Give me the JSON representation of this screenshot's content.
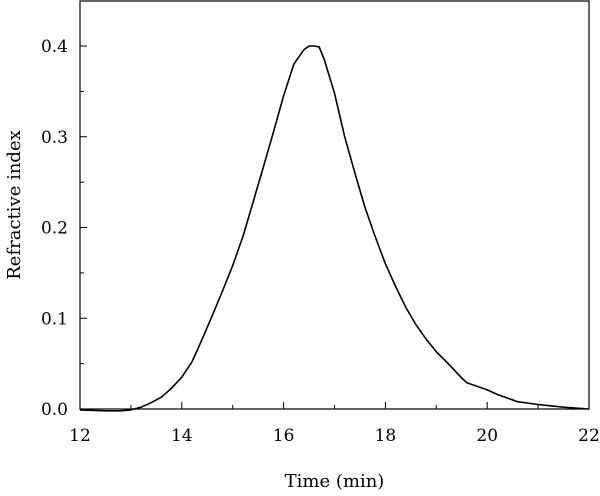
{
  "chart_data": {
    "type": "line",
    "title": "",
    "xlabel": "Time (min)",
    "ylabel": "Refractive index",
    "xlim": [
      12,
      22
    ],
    "ylim": [
      0,
      0.4
    ],
    "x_ticks": [
      12,
      14,
      16,
      18,
      20,
      22
    ],
    "x_tick_labels": [
      "12",
      "14",
      "16",
      "18",
      "20",
      "22"
    ],
    "y_ticks": [
      0,
      0.1,
      0.2,
      0.3,
      0.4
    ],
    "y_tick_labels": [
      "0.0",
      "0.1",
      "0.2",
      "0.3",
      "0.4"
    ],
    "grid": false,
    "legend": "none",
    "line_color": "#000000",
    "series": [
      {
        "x": [
          12,
          12.5,
          12.8,
          13.0,
          13.2,
          13.4,
          13.6,
          13.7,
          13.8,
          14.0,
          14.2,
          14.4,
          14.6,
          14.8,
          15.0,
          15.2,
          15.4,
          15.6,
          15.8,
          16.0,
          16.2,
          16.4,
          16.5,
          16.6,
          16.7,
          16.8,
          17.0,
          17.2,
          17.4,
          17.6,
          17.8,
          18.0,
          18.2,
          18.4,
          18.6,
          18.8,
          19.0,
          19.2,
          19.4,
          19.5,
          19.6,
          19.8,
          20.0,
          20.2,
          20.4,
          20.6,
          21.0,
          21.5,
          22.0
        ],
        "y": [
          -0.001,
          -0.002,
          -0.002,
          -0.001,
          0.002,
          0.007,
          0.013,
          0.018,
          0.023,
          0.035,
          0.052,
          0.077,
          0.103,
          0.13,
          0.158,
          0.19,
          0.228,
          0.266,
          0.305,
          0.345,
          0.38,
          0.396,
          0.4,
          0.4,
          0.399,
          0.385,
          0.348,
          0.3,
          0.26,
          0.222,
          0.19,
          0.16,
          0.135,
          0.112,
          0.093,
          0.077,
          0.063,
          0.052,
          0.04,
          0.034,
          0.029,
          0.025,
          0.021,
          0.016,
          0.012,
          0.008,
          0.005,
          0.002,
          0.0
        ]
      }
    ]
  }
}
